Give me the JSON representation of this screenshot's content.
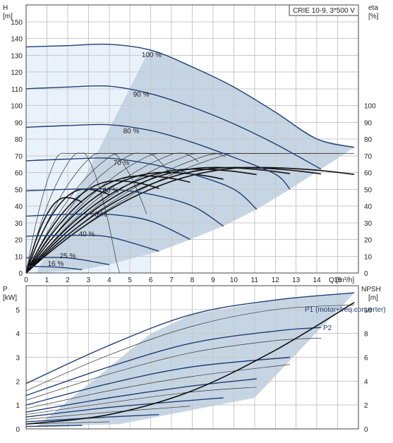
{
  "title": "CRIE 10-9, 3*500 V",
  "chart_data": [
    {
      "type": "line",
      "xlabel": "Q [m³/h]",
      "ylabel": "H [m]",
      "y2label": "eta [%]",
      "xlim": [
        0,
        16
      ],
      "ylim": [
        0,
        160
      ],
      "y2lim": [
        0,
        100
      ],
      "xticks": [
        0,
        1,
        2,
        3,
        4,
        5,
        6,
        7,
        8,
        9,
        10,
        11,
        12,
        13,
        14,
        15
      ],
      "yticks": [
        0,
        10,
        20,
        30,
        40,
        50,
        60,
        70,
        80,
        90,
        100,
        110,
        120,
        130,
        140,
        150
      ],
      "y2ticks": [
        0,
        10,
        20,
        30,
        40,
        50,
        60,
        70,
        80,
        90,
        100
      ],
      "grid": true,
      "speed_curves": [
        {
          "label": "100 %",
          "q_max": 15.8,
          "points": [
            [
              0,
              135
            ],
            [
              2,
              135.7
            ],
            [
              4,
              136.5
            ],
            [
              6,
              133
            ],
            [
              8,
              123
            ],
            [
              10,
              111
            ],
            [
              12,
              96
            ],
            [
              14,
              80
            ],
            [
              15.8,
              75
            ]
          ]
        },
        {
          "label": "90 %",
          "q_max": 14.2,
          "points": [
            [
              0,
              110
            ],
            [
              2,
              111
            ],
            [
              4,
              111.5
            ],
            [
              6,
              107
            ],
            [
              8,
              99
            ],
            [
              10,
              89
            ],
            [
              12,
              77
            ],
            [
              14.2,
              62
            ]
          ]
        },
        {
          "label": "80 %",
          "q_max": 12.7,
          "points": [
            [
              0,
              87
            ],
            [
              2,
              88
            ],
            [
              4,
              88.5
            ],
            [
              6,
              85
            ],
            [
              8,
              78
            ],
            [
              10,
              69
            ],
            [
              12,
              59
            ],
            [
              12.7,
              50
            ]
          ]
        },
        {
          "label": "70 %",
          "q_max": 11.1,
          "points": [
            [
              0,
              67
            ],
            [
              2,
              68
            ],
            [
              4,
              68.5
            ],
            [
              6,
              65
            ],
            [
              8,
              59
            ],
            [
              10,
              50
            ],
            [
              11.1,
              38
            ]
          ]
        },
        {
          "label": "60 %",
          "q_max": 9.5,
          "points": [
            [
              0,
              49
            ],
            [
              2,
              50
            ],
            [
              4,
              50
            ],
            [
              6,
              47
            ],
            [
              8,
              40
            ],
            [
              9.5,
              28
            ]
          ]
        },
        {
          "label": "50 %",
          "q_max": 7.9,
          "points": [
            [
              0,
              34
            ],
            [
              2,
              35
            ],
            [
              4,
              35
            ],
            [
              6,
              31
            ],
            [
              7.9,
              20
            ]
          ]
        },
        {
          "label": "40 %",
          "q_max": 6.4,
          "points": [
            [
              0,
              22
            ],
            [
              2,
              22.5
            ],
            [
              4,
              21.5
            ],
            [
              6.4,
              13
            ]
          ]
        },
        {
          "label": "25 %",
          "q_max": 4.0,
          "points": [
            [
              0,
              9
            ],
            [
              2,
              9
            ],
            [
              4,
              5
            ]
          ]
        },
        {
          "label": "16 %",
          "q_max": 2.7,
          "points": [
            [
              0,
              4
            ],
            [
              1.5,
              3.5
            ],
            [
              2.7,
              2
            ]
          ]
        }
      ],
      "efficiency_curves": [
        {
          "peak_q": 2.0,
          "peak_eta": 70,
          "q_max": 4.5
        },
        {
          "peak_q": 3.0,
          "peak_eta": 70,
          "q_max": 5.8
        },
        {
          "peak_q": 4.2,
          "peak_eta": 70,
          "q_max": 7.0
        },
        {
          "peak_q": 5.4,
          "peak_eta": 70,
          "q_max": 8.3
        },
        {
          "peak_q": 6.5,
          "peak_eta": 70,
          "q_max": 9.6
        },
        {
          "peak_q": 7.8,
          "peak_eta": 70,
          "q_max": 11.0
        },
        {
          "peak_q": 9.0,
          "peak_eta": 70,
          "q_max": 12.3
        },
        {
          "peak_q": 10.2,
          "peak_eta": 70,
          "q_max": 13.7
        },
        {
          "peak_q": 11.4,
          "peak_eta": 70,
          "q_max": 15.0
        },
        {
          "peak_q": 12.5,
          "peak_eta": 70,
          "q_max": 15.8
        }
      ],
      "bold_efficiency_curves": [
        {
          "label": "100 %",
          "peak_q": 11.0,
          "peak_eta": 63,
          "q_max": 15.8
        },
        {
          "label": "90 %",
          "peak_q": 10.0,
          "peak_eta": 63,
          "q_max": 14.2
        },
        {
          "label": "80 %",
          "peak_q": 9.0,
          "peak_eta": 63,
          "q_max": 12.7
        },
        {
          "label": "70 %",
          "peak_q": 8.0,
          "peak_eta": 62,
          "q_max": 11.1
        },
        {
          "label": "60 %",
          "peak_q": 6.6,
          "peak_eta": 60,
          "q_max": 9.5
        },
        {
          "label": "50 %",
          "peak_q": 5.5,
          "peak_eta": 58,
          "q_max": 7.9
        },
        {
          "label": "40 %",
          "peak_q": 4.3,
          "peak_eta": 55,
          "q_max": 6.4
        },
        {
          "label": "25 %",
          "peak_q": 2.8,
          "peak_eta": 50,
          "q_max": 4.0
        },
        {
          "label": "16 %",
          "peak_q": 1.9,
          "peak_eta": 45,
          "q_max": 2.7
        }
      ]
    },
    {
      "type": "line",
      "xlabel": "",
      "ylabel": "P [kW]",
      "y2label": "NPSH [m]",
      "xlim": [
        0,
        16
      ],
      "ylim": [
        0,
        6
      ],
      "y2lim": [
        0,
        12
      ],
      "yticks": [
        0,
        1,
        2,
        3,
        4,
        5
      ],
      "y2ticks": [
        0,
        2,
        4,
        6,
        8,
        10
      ],
      "grid": true,
      "labels": [
        "P1 (motor+freq.converter)",
        "P2"
      ],
      "power_curves": [
        {
          "series": "P1",
          "points": [
            [
              0,
              1.9
            ],
            [
              4,
              3.5
            ],
            [
              8,
              4.8
            ],
            [
              12,
              5.4
            ],
            [
              15.8,
              5.7
            ]
          ]
        },
        {
          "series": "P2",
          "points": [
            [
              0,
              1.6
            ],
            [
              4,
              3.1
            ],
            [
              8,
              4.3
            ],
            [
              12,
              5.0
            ],
            [
              15.8,
              5.2
            ]
          ]
        },
        {
          "points": [
            [
              0,
              1.4
            ],
            [
              4,
              2.6
            ],
            [
              8,
              3.6
            ],
            [
              12,
              4.1
            ],
            [
              14.2,
              4.25
            ]
          ]
        },
        {
          "points": [
            [
              0,
              1.2
            ],
            [
              4,
              2.3
            ],
            [
              8,
              3.2
            ],
            [
              12,
              3.7
            ],
            [
              14.2,
              3.8
            ]
          ]
        },
        {
          "points": [
            [
              0,
              1.0
            ],
            [
              4,
              1.9
            ],
            [
              8,
              2.6
            ],
            [
              12.7,
              3.0
            ]
          ]
        },
        {
          "points": [
            [
              0,
              0.85
            ],
            [
              4,
              1.6
            ],
            [
              8,
              2.2
            ],
            [
              12.7,
              2.7
            ]
          ]
        },
        {
          "points": [
            [
              0,
              0.7
            ],
            [
              4,
              1.3
            ],
            [
              8,
              1.8
            ],
            [
              11.1,
              2.1
            ]
          ]
        },
        {
          "points": [
            [
              0,
              0.6
            ],
            [
              4,
              1.1
            ],
            [
              8,
              1.55
            ],
            [
              11.1,
              1.75
            ]
          ]
        },
        {
          "points": [
            [
              0,
              0.5
            ],
            [
              4,
              0.9
            ],
            [
              8,
              1.2
            ],
            [
              9.5,
              1.3
            ]
          ]
        },
        {
          "points": [
            [
              0,
              0.4
            ],
            [
              4,
              0.7
            ],
            [
              7.9,
              0.95
            ]
          ]
        },
        {
          "points": [
            [
              0,
              0.3
            ],
            [
              4,
              0.5
            ],
            [
              6.4,
              0.6
            ]
          ]
        },
        {
          "points": [
            [
              0,
              0.2
            ],
            [
              4,
              0.3
            ]
          ]
        },
        {
          "points": [
            [
              0,
              0.1
            ],
            [
              2.7,
              0.15
            ]
          ]
        }
      ],
      "npsh_curve": [
        [
          0,
          0.2
        ],
        [
          4,
          0.6
        ],
        [
          8,
          1.6
        ],
        [
          12,
          3.3
        ],
        [
          15.8,
          5.3
        ]
      ]
    }
  ]
}
